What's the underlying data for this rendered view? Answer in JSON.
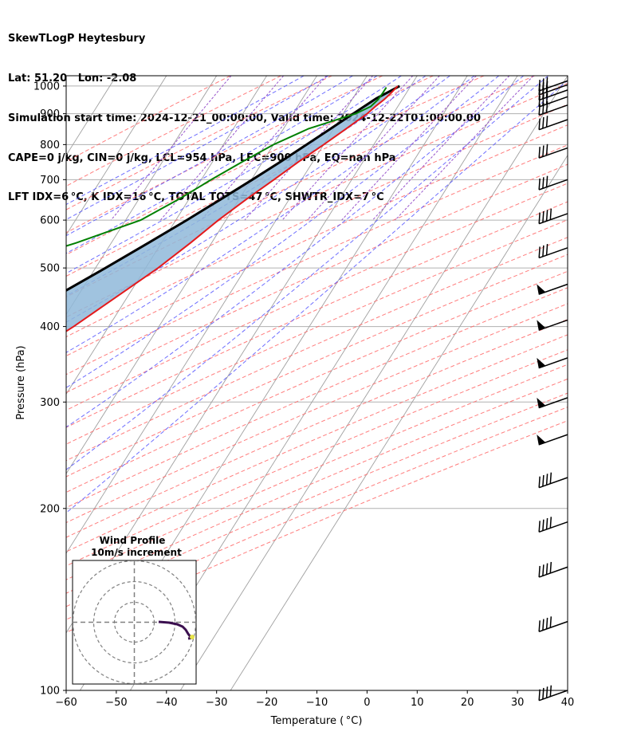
{
  "header": {
    "line1": "SkewTLogP Heytesbury",
    "line2": "Lat: 51.20   Lon: -2.08",
    "line3": "Simulation start time: 2024-12-21_00:00:00, Valid time: 2024-12-22T01:00:00.00",
    "line4": "CAPE=0 j/kg, CIN=0 j/kg, LCL=954 hPa, LFC=900 hPa, EQ=nan hPa",
    "line5": "LFT IDX=6 °C, K IDX=16 °C, TOTAL TOTS=47 °C, SHWTR_IDX=7 °C"
  },
  "chart_data": {
    "type": "line",
    "skew_t": true,
    "xlabel": "Temperature ( °C)",
    "ylabel": "Pressure (hPa)",
    "xlim": [
      -60,
      40
    ],
    "ylim": [
      1040,
      100
    ],
    "x_ticks": [
      -60,
      -50,
      -40,
      -30,
      -20,
      -10,
      0,
      10,
      20,
      30,
      40
    ],
    "y_ticks": [
      100,
      200,
      300,
      400,
      500,
      600,
      700,
      800,
      900,
      1000
    ],
    "y_scale": "log",
    "grid": true,
    "colors": {
      "temperature": "#e41a1c",
      "dewpoint": "#008000",
      "parcel": "#000000",
      "cape_fill": "#8fb9d9",
      "dry_adiabats": "#ff6666",
      "moist_adiabats": "#5555ff",
      "mixing_ratio": "#9955cc",
      "isotherms": "#a0a0a0"
    },
    "series": [
      {
        "name": "temperature",
        "points": [
          {
            "p": 1000,
            "t": 7.4
          },
          {
            "p": 975,
            "t": 7.0
          },
          {
            "p": 950,
            "t": 6.4
          },
          {
            "p": 925,
            "t": 5.5
          },
          {
            "p": 900,
            "t": 4.8
          },
          {
            "p": 850,
            "t": 2.5
          },
          {
            "p": 800,
            "t": 0.0
          },
          {
            "p": 750,
            "t": -2.8
          },
          {
            "p": 700,
            "t": -5.5
          },
          {
            "p": 650,
            "t": -8.5
          },
          {
            "p": 600,
            "t": -11.5
          },
          {
            "p": 550,
            "t": -14.2
          },
          {
            "p": 500,
            "t": -17.5
          },
          {
            "p": 450,
            "t": -22.0
          },
          {
            "p": 400,
            "t": -27.0
          },
          {
            "p": 350,
            "t": -33.5
          },
          {
            "p": 300,
            "t": -41.0
          },
          {
            "p": 250,
            "t": -49.0
          },
          {
            "p": 200,
            "t": -54.0
          },
          {
            "p": 175,
            "t": -55.5
          },
          {
            "p": 150,
            "t": -57.5
          },
          {
            "p": 125,
            "t": -59.5
          },
          {
            "p": 100,
            "t": -61.0
          }
        ]
      },
      {
        "name": "dewpoint",
        "points": [
          {
            "p": 995,
            "t": 5.3
          },
          {
            "p": 975,
            "t": 5.3
          },
          {
            "p": 950,
            "t": 5.2
          },
          {
            "p": 925,
            "t": 4.6
          },
          {
            "p": 900,
            "t": 2.5
          },
          {
            "p": 850,
            "t": -5.0
          },
          {
            "p": 800,
            "t": -10.0
          },
          {
            "p": 750,
            "t": -14.0
          },
          {
            "p": 700,
            "t": -18.0
          },
          {
            "p": 650,
            "t": -22.0
          },
          {
            "p": 600,
            "t": -27.0
          },
          {
            "p": 550,
            "t": -37.0
          },
          {
            "p": 500,
            "t": -50.0
          },
          {
            "p": 475,
            "t": -49.0
          },
          {
            "p": 450,
            "t": -47.0
          },
          {
            "p": 425,
            "t": -44.5
          },
          {
            "p": 400,
            "t": -43.0
          },
          {
            "p": 375,
            "t": -43.5
          },
          {
            "p": 350,
            "t": -45.5
          },
          {
            "p": 300,
            "t": -52.0
          },
          {
            "p": 250,
            "t": -61.0
          },
          {
            "p": 225,
            "t": -64.0
          },
          {
            "p": 200,
            "t": -66.0
          },
          {
            "p": 185,
            "t": -67.5
          },
          {
            "p": 170,
            "t": -70.0
          },
          {
            "p": 160,
            "t": -72.0
          },
          {
            "p": 155,
            "t": -74.0
          },
          {
            "p": 140,
            "t": -77.0
          },
          {
            "p": 120,
            "t": -82.0
          },
          {
            "p": 100,
            "t": -86.0
          }
        ]
      },
      {
        "name": "parcel",
        "points": [
          {
            "p": 1000,
            "t": 7.8
          },
          {
            "p": 954,
            "t": 4.7
          },
          {
            "p": 900,
            "t": 2.0
          },
          {
            "p": 850,
            "t": -0.6
          },
          {
            "p": 800,
            "t": -3.4
          },
          {
            "p": 750,
            "t": -6.4
          },
          {
            "p": 700,
            "t": -9.8
          },
          {
            "p": 650,
            "t": -13.6
          },
          {
            "p": 600,
            "t": -17.8
          },
          {
            "p": 550,
            "t": -22.6
          },
          {
            "p": 500,
            "t": -28.0
          },
          {
            "p": 450,
            "t": -34.2
          },
          {
            "p": 400,
            "t": -41.3
          },
          {
            "p": 350,
            "t": -49.5
          },
          {
            "p": 300,
            "t": -59.0
          },
          {
            "p": 250,
            "t": -70.0
          },
          {
            "p": 200,
            "t": -82.5
          },
          {
            "p": 150,
            "t": -97.0
          },
          {
            "p": 100,
            "t": -114.0
          }
        ]
      }
    ],
    "wind_profile_inset": {
      "title": "Wind Profile",
      "subtitle": "10m/s increment"
    },
    "wind_barbs": [
      {
        "p": 100,
        "speed_kt": 35,
        "type": "feathers"
      },
      {
        "p": 130,
        "speed_kt": 35,
        "type": "feathers"
      },
      {
        "p": 160,
        "speed_kt": 40,
        "type": "feathers"
      },
      {
        "p": 190,
        "speed_kt": 45,
        "type": "feathers"
      },
      {
        "p": 225,
        "speed_kt": 45,
        "type": "feathers"
      },
      {
        "p": 265,
        "speed_kt": 50,
        "type": "pennant"
      },
      {
        "p": 305,
        "speed_kt": 50,
        "type": "pennant"
      },
      {
        "p": 355,
        "speed_kt": 50,
        "type": "pennant"
      },
      {
        "p": 410,
        "speed_kt": 50,
        "type": "pennant"
      },
      {
        "p": 470,
        "speed_kt": 50,
        "type": "pennant"
      },
      {
        "p": 540,
        "speed_kt": 30,
        "type": "feathers"
      },
      {
        "p": 615,
        "speed_kt": 40,
        "type": "feathers"
      },
      {
        "p": 700,
        "speed_kt": 30,
        "type": "feathers"
      },
      {
        "p": 790,
        "speed_kt": 25,
        "type": "feathers"
      },
      {
        "p": 880,
        "speed_kt": 25,
        "type": "feathers"
      },
      {
        "p": 930,
        "speed_kt": 30,
        "type": "feathers"
      },
      {
        "p": 960,
        "speed_kt": 30,
        "type": "feathers"
      },
      {
        "p": 985,
        "speed_kt": 30,
        "type": "feathers"
      },
      {
        "p": 1005,
        "speed_kt": 25,
        "type": "feathers"
      },
      {
        "p": 1020,
        "speed_kt": 25,
        "type": "feathers"
      }
    ]
  }
}
